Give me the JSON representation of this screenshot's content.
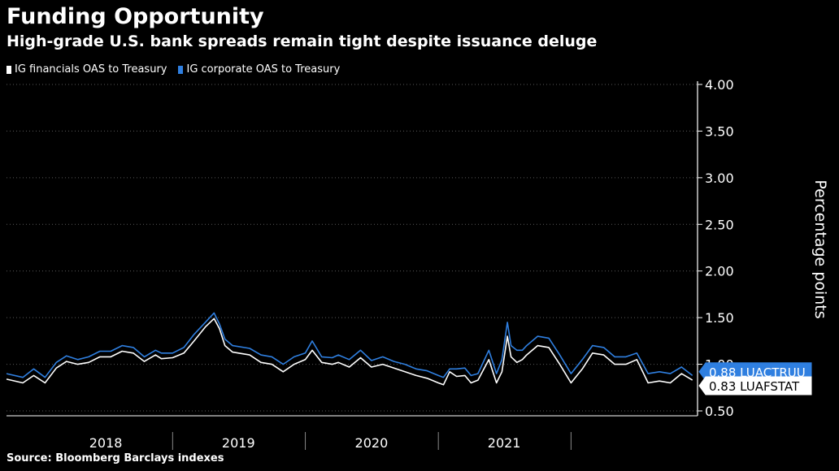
{
  "header": {
    "title": "Funding Opportunity",
    "subtitle": "High-grade U.S. bank spreads remain tight despite issuance deluge"
  },
  "source": "Source: Bloomberg Barclays indexes",
  "colors": {
    "background": "#000000",
    "financials": "#ffffff",
    "corporate": "#2f7fe0",
    "grid": "#5a5a5a",
    "axis": "#ffffff"
  },
  "chart_data": {
    "type": "line",
    "ylabel": "Percentage points",
    "ylim": [
      0.5,
      4.0
    ],
    "yticks": [
      "0.50",
      "1.00",
      "1.50",
      "2.00",
      "2.50",
      "3.00",
      "3.50",
      "4.00"
    ],
    "year_labels": [
      "2018",
      "2019",
      "2020",
      "2021"
    ],
    "grid": "horizontal dotted",
    "legend_position": "top-left",
    "series": [
      {
        "name": "IG financials OAS to Treasury",
        "color": "#ffffff",
        "end_label": "0.83 LUAFSTAT",
        "points": [
          [
            "2017-10-01",
            0.84
          ],
          [
            "2017-11-15",
            0.8
          ],
          [
            "2017-12-15",
            0.88
          ],
          [
            "2018-01-15",
            0.8
          ],
          [
            "2018-02-15",
            0.96
          ],
          [
            "2018-03-15",
            1.03
          ],
          [
            "2018-04-15",
            1.0
          ],
          [
            "2018-05-15",
            1.02
          ],
          [
            "2018-06-15",
            1.08
          ],
          [
            "2018-07-15",
            1.08
          ],
          [
            "2018-08-15",
            1.14
          ],
          [
            "2018-09-15",
            1.12
          ],
          [
            "2018-10-15",
            1.03
          ],
          [
            "2018-11-15",
            1.1
          ],
          [
            "2018-12-01",
            1.06
          ],
          [
            "2019-01-01",
            1.07
          ],
          [
            "2019-02-01",
            1.12
          ],
          [
            "2019-03-01",
            1.25
          ],
          [
            "2019-04-01",
            1.4
          ],
          [
            "2019-04-25",
            1.49
          ],
          [
            "2019-05-10",
            1.38
          ],
          [
            "2019-05-25",
            1.2
          ],
          [
            "2019-06-15",
            1.13
          ],
          [
            "2019-08-01",
            1.1
          ],
          [
            "2019-09-01",
            1.02
          ],
          [
            "2019-10-01",
            1.0
          ],
          [
            "2019-11-01",
            0.92
          ],
          [
            "2019-12-01",
            1.0
          ],
          [
            "2020-01-01",
            1.05
          ],
          [
            "2020-01-20",
            1.15
          ],
          [
            "2020-02-15",
            1.02
          ],
          [
            "2020-03-15",
            1.0
          ],
          [
            "2020-04-01",
            1.02
          ],
          [
            "2020-05-01",
            0.97
          ],
          [
            "2020-06-01",
            1.07
          ],
          [
            "2020-07-01",
            0.97
          ],
          [
            "2020-08-01",
            1.0
          ],
          [
            "2020-09-01",
            0.96
          ],
          [
            "2020-10-01",
            0.92
          ],
          [
            "2020-11-01",
            0.88
          ],
          [
            "2020-12-01",
            0.85
          ],
          [
            "2021-01-01",
            0.8
          ],
          [
            "2021-01-15",
            0.78
          ],
          [
            "2021-02-01",
            0.92
          ],
          [
            "2021-02-20",
            0.87
          ],
          [
            "2021-03-15",
            0.88
          ],
          [
            "2021-04-01",
            0.8
          ],
          [
            "2021-04-20",
            0.83
          ],
          [
            "2021-05-20",
            1.05
          ],
          [
            "2021-06-10",
            0.8
          ],
          [
            "2021-06-25",
            0.92
          ],
          [
            "2021-07-10",
            1.3
          ],
          [
            "2021-07-20",
            1.08
          ],
          [
            "2021-08-05",
            1.02
          ],
          [
            "2021-08-20",
            1.05
          ],
          [
            "2021-09-01",
            1.1
          ],
          [
            "2021-10-01",
            1.2
          ],
          [
            "2021-11-01",
            1.18
          ],
          [
            "2021-12-01",
            1.0
          ],
          [
            "2022-01-01",
            0.8
          ],
          [
            "2022-02-01",
            0.95
          ],
          [
            "2022-03-01",
            1.12
          ],
          [
            "2022-04-01",
            1.1
          ],
          [
            "2022-05-01",
            1.0
          ],
          [
            "2022-06-01",
            1.0
          ],
          [
            "2022-07-01",
            1.05
          ],
          [
            "2022-08-01",
            0.8
          ],
          [
            "2022-09-01",
            0.82
          ],
          [
            "2022-10-01",
            0.8
          ],
          [
            "2022-11-01",
            0.9
          ],
          [
            "2022-12-01",
            0.83
          ]
        ]
      },
      {
        "name": "IG corporate OAS to Treasury",
        "color": "#2f7fe0",
        "end_label": "0.88 LUACTRUU",
        "points": [
          [
            "2017-10-01",
            0.9
          ],
          [
            "2017-11-15",
            0.86
          ],
          [
            "2017-12-15",
            0.95
          ],
          [
            "2018-01-15",
            0.86
          ],
          [
            "2018-02-15",
            1.02
          ],
          [
            "2018-03-15",
            1.09
          ],
          [
            "2018-04-15",
            1.05
          ],
          [
            "2018-05-15",
            1.08
          ],
          [
            "2018-06-15",
            1.14
          ],
          [
            "2018-07-15",
            1.14
          ],
          [
            "2018-08-15",
            1.2
          ],
          [
            "2018-09-15",
            1.18
          ],
          [
            "2018-10-15",
            1.08
          ],
          [
            "2018-11-15",
            1.15
          ],
          [
            "2018-12-01",
            1.12
          ],
          [
            "2019-01-01",
            1.12
          ],
          [
            "2019-02-01",
            1.18
          ],
          [
            "2019-03-01",
            1.32
          ],
          [
            "2019-04-01",
            1.45
          ],
          [
            "2019-04-25",
            1.55
          ],
          [
            "2019-05-10",
            1.43
          ],
          [
            "2019-05-25",
            1.27
          ],
          [
            "2019-06-15",
            1.2
          ],
          [
            "2019-08-01",
            1.17
          ],
          [
            "2019-09-01",
            1.1
          ],
          [
            "2019-10-01",
            1.08
          ],
          [
            "2019-11-01",
            1.0
          ],
          [
            "2019-12-01",
            1.08
          ],
          [
            "2020-01-01",
            1.12
          ],
          [
            "2020-01-20",
            1.25
          ],
          [
            "2020-02-15",
            1.08
          ],
          [
            "2020-03-15",
            1.07
          ],
          [
            "2020-04-01",
            1.1
          ],
          [
            "2020-05-01",
            1.05
          ],
          [
            "2020-06-01",
            1.15
          ],
          [
            "2020-07-01",
            1.04
          ],
          [
            "2020-08-01",
            1.08
          ],
          [
            "2020-09-01",
            1.03
          ],
          [
            "2020-10-01",
            1.0
          ],
          [
            "2020-11-01",
            0.95
          ],
          [
            "2020-12-01",
            0.93
          ],
          [
            "2021-01-01",
            0.88
          ],
          [
            "2021-01-15",
            0.86
          ],
          [
            "2021-02-01",
            0.95
          ],
          [
            "2021-02-20",
            0.95
          ],
          [
            "2021-03-15",
            0.96
          ],
          [
            "2021-04-01",
            0.88
          ],
          [
            "2021-04-20",
            0.9
          ],
          [
            "2021-05-20",
            1.15
          ],
          [
            "2021-06-10",
            0.9
          ],
          [
            "2021-06-25",
            1.05
          ],
          [
            "2021-07-10",
            1.45
          ],
          [
            "2021-07-20",
            1.2
          ],
          [
            "2021-08-05",
            1.15
          ],
          [
            "2021-08-20",
            1.15
          ],
          [
            "2021-09-01",
            1.2
          ],
          [
            "2021-10-01",
            1.3
          ],
          [
            "2021-11-01",
            1.28
          ],
          [
            "2021-12-01",
            1.1
          ],
          [
            "2022-01-01",
            0.9
          ],
          [
            "2022-02-01",
            1.05
          ],
          [
            "2022-03-01",
            1.2
          ],
          [
            "2022-04-01",
            1.18
          ],
          [
            "2022-05-01",
            1.08
          ],
          [
            "2022-06-01",
            1.08
          ],
          [
            "2022-07-01",
            1.12
          ],
          [
            "2022-08-01",
            0.9
          ],
          [
            "2022-09-01",
            0.92
          ],
          [
            "2022-10-01",
            0.9
          ],
          [
            "2022-11-01",
            0.97
          ],
          [
            "2022-12-01",
            0.88
          ]
        ]
      }
    ]
  }
}
